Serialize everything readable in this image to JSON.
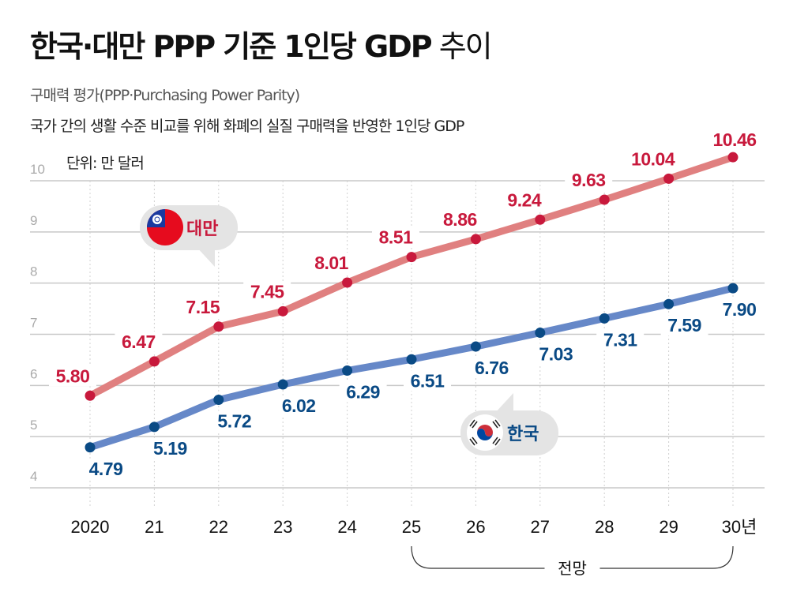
{
  "header": {
    "title_bold": "한국·대만 PPP 기준 1인당 GDP",
    "title_light": " 추이",
    "subtitle_1": "구매력 평가(PPP·Purchasing Power Parity)",
    "subtitle_2": "국가 간의 생활 수준 비교를 위해 화폐의 실질 구매력을 반영한 1인당 GDP",
    "unit": "단위: 만 달러"
  },
  "legend": {
    "taiwan": {
      "label": "대만",
      "icon": "taiwan-flag-icon"
    },
    "korea": {
      "label": "한국",
      "icon": "korea-flag-icon"
    }
  },
  "forecast_label": "전망",
  "chart_data": {
    "type": "line",
    "title": "한국·대만 PPP 기준 1인당 GDP 추이",
    "xlabel": "",
    "ylabel": "단위: 만 달러",
    "categories": [
      "2020",
      "21",
      "22",
      "23",
      "24",
      "25",
      "26",
      "27",
      "28",
      "29",
      "30년"
    ],
    "ylim": [
      4,
      10
    ],
    "yticks": [
      4,
      5,
      6,
      7,
      8,
      9,
      10
    ],
    "grid": true,
    "forecast_range": [
      "25",
      "30년"
    ],
    "series": [
      {
        "name": "대만",
        "color": "#c8193c",
        "line_color": "#e08080",
        "values": [
          5.8,
          6.47,
          7.15,
          7.45,
          8.01,
          8.51,
          8.86,
          9.24,
          9.63,
          10.04,
          10.46
        ],
        "labels": [
          "5.80",
          "6.47",
          "7.15",
          "7.45",
          "8.01",
          "8.51",
          "8.86",
          "9.24",
          "9.63",
          "10.04",
          "10.46"
        ]
      },
      {
        "name": "한국",
        "color": "#0a4a85",
        "line_color": "#6688c8",
        "values": [
          4.79,
          5.19,
          5.72,
          6.02,
          6.29,
          6.51,
          6.76,
          7.03,
          7.31,
          7.59,
          7.9
        ],
        "labels": [
          "4.79",
          "5.19",
          "5.72",
          "6.02",
          "6.29",
          "6.51",
          "6.76",
          "7.03",
          "7.31",
          "7.59",
          "7.90"
        ]
      }
    ]
  }
}
